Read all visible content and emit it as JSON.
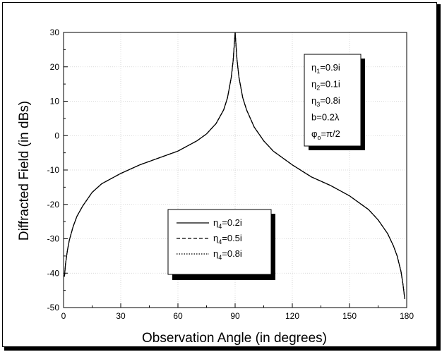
{
  "chart_data": {
    "type": "line",
    "title": "",
    "xlabel": "Observation Angle (in degrees)",
    "ylabel": "Diffracted Field (in dBs)",
    "xlim": [
      0,
      180
    ],
    "ylim": [
      -50,
      30
    ],
    "xticks": [
      0,
      30,
      60,
      90,
      120,
      150,
      180
    ],
    "yticks": [
      30,
      20,
      10,
      0,
      -10,
      -20,
      -30,
      -40,
      -50
    ],
    "xtick_labels": [
      "0",
      "30",
      "60",
      "90",
      "120",
      "150",
      "180"
    ],
    "ytick_labels": [
      "30",
      "20",
      "10",
      "0",
      "-10",
      "-20",
      "-30",
      "-40",
      "-50"
    ],
    "grid": true,
    "legend_position": "lower-center",
    "legend": [
      {
        "sym": "η",
        "sub": "4",
        "rest": "=0.2i",
        "style": "solid"
      },
      {
        "sym": "η",
        "sub": "4",
        "rest": "=0.5i",
        "style": "dashed"
      },
      {
        "sym": "η",
        "sub": "4",
        "rest": "=0.8i",
        "style": "dotted"
      }
    ],
    "parameters": [
      {
        "sym": "η",
        "sub": "1",
        "rest": "=0.9i"
      },
      {
        "sym": "η",
        "sub": "2",
        "rest": "=0.1i"
      },
      {
        "sym": "η",
        "sub": "3",
        "rest": "=0.8i"
      },
      {
        "sym": "b=0.2λ",
        "sub": "",
        "rest": ""
      },
      {
        "sym": "φ",
        "sub": "o",
        "rest": "=π/2"
      }
    ],
    "series": [
      {
        "style": "solid",
        "x": [
          0.5,
          1,
          2,
          3,
          5,
          7,
          10,
          15,
          20,
          30,
          40,
          50,
          60,
          70,
          75,
          80,
          84,
          86,
          88,
          89,
          90,
          91,
          92,
          94,
          96,
          100,
          105,
          110,
          120,
          130,
          140,
          150,
          160,
          165,
          170,
          173,
          175,
          177,
          178,
          179
        ],
        "y": [
          -41,
          -37.5,
          -33.5,
          -30.5,
          -26.5,
          -23.5,
          -20.5,
          -16.5,
          -14,
          -11,
          -8.5,
          -6.5,
          -4.5,
          -1.5,
          0.5,
          3.5,
          7.5,
          11,
          17,
          22,
          30,
          22,
          17,
          11,
          7.5,
          2.5,
          -1.5,
          -4.5,
          -8.5,
          -12,
          -14.5,
          -17.5,
          -21.5,
          -24.5,
          -28.5,
          -32,
          -35,
          -39.5,
          -43,
          -47.5
        ]
      },
      {
        "style": "dashed",
        "x": [
          0.5,
          1,
          2,
          3,
          5,
          7,
          10,
          15,
          20,
          30,
          40,
          50,
          60,
          70,
          75,
          80,
          84,
          86,
          88,
          89,
          90,
          91,
          92,
          94,
          96,
          100,
          105,
          110,
          120,
          130,
          140,
          150,
          160,
          165,
          170,
          173,
          175,
          177,
          178,
          179
        ],
        "y": [
          -41,
          -37.5,
          -33.5,
          -30.5,
          -26.5,
          -23.5,
          -20.5,
          -16.5,
          -14,
          -11,
          -8.5,
          -6.5,
          -4.5,
          -1.5,
          0.5,
          3.5,
          7.5,
          11,
          17,
          22,
          30,
          22,
          17,
          11,
          7.5,
          2.5,
          -1.5,
          -4.5,
          -8.5,
          -12,
          -14.5,
          -17.5,
          -21.5,
          -24.5,
          -28.5,
          -32,
          -35,
          -39.5,
          -43,
          -47.5
        ]
      },
      {
        "style": "dotted",
        "x": [
          0.5,
          1,
          2,
          3,
          5,
          7,
          10,
          15,
          20,
          30,
          40,
          50,
          60,
          70,
          75,
          80,
          84,
          86,
          88,
          89,
          90,
          91,
          92,
          94,
          96,
          100,
          105,
          110,
          120,
          130,
          140,
          150,
          160,
          165,
          170,
          173,
          175,
          177,
          178,
          179
        ],
        "y": [
          -41,
          -37.5,
          -33.5,
          -30.5,
          -26.5,
          -23.5,
          -20.5,
          -16.5,
          -14,
          -11,
          -8.5,
          -6.5,
          -4.5,
          -1.5,
          0.5,
          3.5,
          7.5,
          11,
          17,
          22,
          30,
          22,
          17,
          11,
          7.5,
          2.5,
          -1.5,
          -4.5,
          -8.5,
          -12,
          -14.5,
          -17.5,
          -21.5,
          -24.5,
          -28.5,
          -32,
          -35,
          -39.5,
          -43,
          -47.5
        ]
      }
    ]
  }
}
